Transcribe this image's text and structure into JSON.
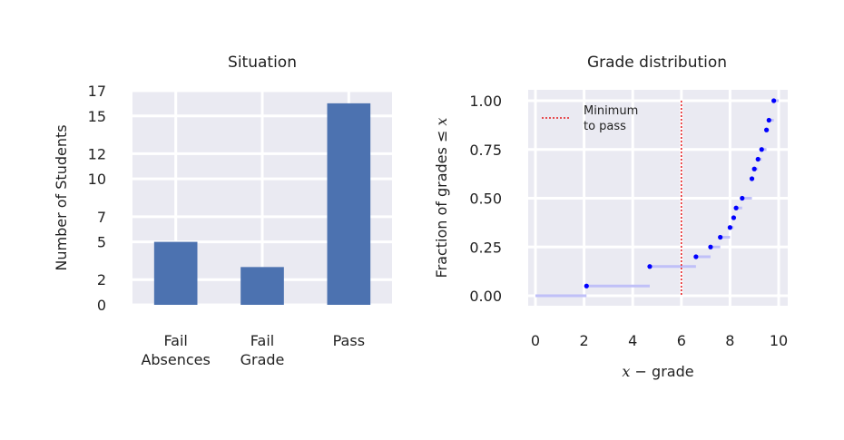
{
  "chart_data": [
    {
      "type": "bar",
      "title": "Situation",
      "ylabel": "Number of Students",
      "xlabel": "",
      "categories": [
        [
          "Fail",
          "Absences"
        ],
        [
          "Fail",
          "Grade"
        ],
        [
          "Pass"
        ]
      ],
      "values": [
        5,
        3,
        16
      ],
      "ylim": [
        0,
        17
      ],
      "yticks": [
        0,
        2,
        5,
        7,
        10,
        12,
        15,
        17
      ],
      "bar_color": "#4c72b0",
      "grid": true
    },
    {
      "type": "line",
      "title": "Grade distribution",
      "xlabel_math": "x",
      "xlabel_text": " − grade",
      "ylabel_text": "Fraction of grades ≤ ",
      "ylabel_math": "x",
      "xlim": [
        0,
        10
      ],
      "ylim": [
        0,
        1
      ],
      "xticks": [
        0,
        2,
        4,
        6,
        8,
        10
      ],
      "yticks": [
        "0.00",
        "0.25",
        "0.50",
        "0.75",
        "1.00"
      ],
      "series": [
        {
          "points": [
            [
              2.1,
              0.05
            ],
            [
              4.7,
              0.15
            ],
            [
              6.6,
              0.2
            ],
            [
              7.2,
              0.25
            ],
            [
              7.6,
              0.3
            ],
            [
              8.0,
              0.35
            ],
            [
              8.15,
              0.4
            ],
            [
              8.25,
              0.45
            ],
            [
              8.5,
              0.5
            ],
            [
              8.9,
              0.6
            ],
            [
              9.0,
              0.65
            ],
            [
              9.15,
              0.7
            ],
            [
              9.3,
              0.75
            ],
            [
              9.5,
              0.85
            ],
            [
              9.6,
              0.9
            ],
            [
              9.8,
              1.0
            ]
          ],
          "point_color": "#0000ff",
          "step_color": "#c0c0f8"
        }
      ],
      "threshold": {
        "x": 6.0,
        "label_lines": [
          "Minimum",
          "to pass"
        ],
        "color": "#e41a1c"
      },
      "legend_position": "top-left",
      "grid": true
    }
  ]
}
